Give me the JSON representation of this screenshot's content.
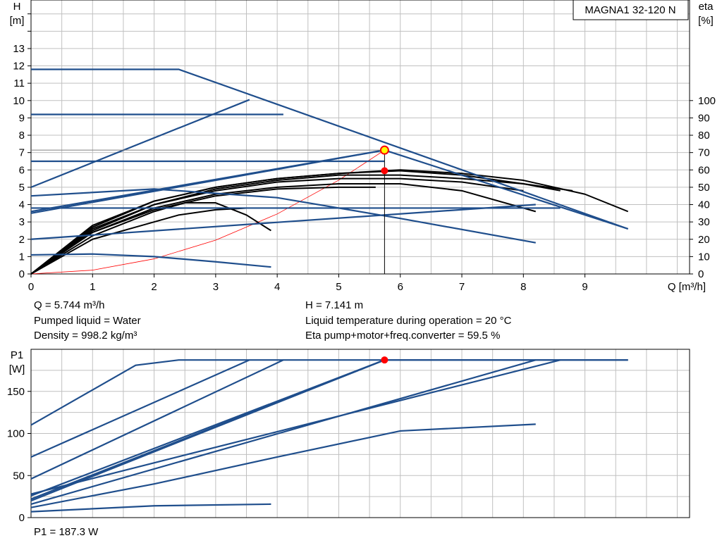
{
  "model_label": "MAGNA1 32-120 N",
  "colors": {
    "curve": "#1f4e8c",
    "bep": "#000000",
    "duty_point": "#ff0000",
    "system": "#ff0000",
    "marker_fill": "#ffff00",
    "grid": "#c0c0c0"
  },
  "info": {
    "flow": "Q = 5.744 m³/h",
    "head": "H = 7.141 m",
    "liquid": "Pumped liquid = Water",
    "temperature": "Liquid temperature during operation = 20 °C",
    "density": "Density = 998.2 kg/m³",
    "eta": "Eta pump+motor+freq.converter = 59.5 %",
    "power": "P1 = 187.3 W"
  },
  "chart_data": [
    {
      "type": "line",
      "title": "",
      "xlabel": "Q [m³/h]",
      "ylabel": "H\n[m]",
      "y2label": "eta\n[%]",
      "xlim": [
        0,
        10.7
      ],
      "ylim": [
        0,
        15.8
      ],
      "y2lim": [
        0,
        158
      ],
      "x_ticks": [
        0,
        1,
        2,
        3,
        4,
        5,
        6,
        7,
        8,
        9
      ],
      "y_ticks": [
        0,
        1,
        2,
        3,
        4,
        5,
        6,
        7,
        8,
        9,
        10,
        11,
        12,
        13
      ],
      "y2_ticks": [
        0,
        10,
        20,
        30,
        40,
        50,
        60,
        70,
        80,
        90,
        100
      ],
      "grid": true,
      "legend": "none",
      "head_curves": [
        {
          "x": [
            0,
            2.4,
            9.7
          ],
          "y": [
            11.8,
            11.8,
            2.6
          ]
        },
        {
          "x": [
            0,
            4.1
          ],
          "y": [
            9.2,
            9.2
          ]
        },
        {
          "x": [
            0,
            3.55
          ],
          "y": [
            5.0,
            10.05
          ]
        },
        {
          "x": [
            0,
            5.744
          ],
          "y": [
            6.5,
            6.5
          ]
        },
        {
          "x": [
            0,
            5.744,
            9.7
          ],
          "y": [
            3.6,
            7.141,
            2.6
          ]
        },
        {
          "x": [
            0,
            5.744
          ],
          "y": [
            3.5,
            7.141
          ]
        },
        {
          "x": [
            0,
            8.6
          ],
          "y": [
            3.8,
            3.8
          ]
        },
        {
          "x": [
            0,
            8.2
          ],
          "y": [
            2.0,
            4.0
          ]
        },
        {
          "x": [
            0,
            2.0,
            4.0,
            6.0,
            8.2
          ],
          "y": [
            4.5,
            4.9,
            4.4,
            3.2,
            1.8
          ]
        },
        {
          "x": [
            0,
            1.0,
            2.0,
            3.0,
            3.9
          ],
          "y": [
            1.1,
            1.15,
            1.0,
            0.7,
            0.4
          ]
        }
      ],
      "efficiency_curves": [
        {
          "x": [
            0,
            1,
            2,
            3,
            4,
            5,
            6,
            7,
            8,
            9,
            9.7
          ],
          "y": [
            0,
            28,
            42,
            50,
            55,
            58,
            60,
            58,
            54,
            46,
            36
          ]
        },
        {
          "x": [
            0,
            1,
            2,
            3,
            4,
            5,
            6,
            7,
            8,
            8.8
          ],
          "y": [
            0,
            27,
            42,
            50,
            55,
            58,
            59.5,
            57,
            52,
            48
          ]
        },
        {
          "x": [
            0,
            1,
            2,
            3,
            4,
            5,
            6,
            7,
            8,
            8.6
          ],
          "y": [
            0,
            26,
            40,
            49,
            54,
            57,
            57,
            55,
            52,
            48
          ]
        },
        {
          "x": [
            0,
            1,
            2,
            3,
            4,
            5,
            6,
            7,
            8.2
          ],
          "y": [
            0,
            24,
            38,
            46,
            50,
            52,
            52,
            48,
            36
          ]
        },
        {
          "x": [
            0,
            1,
            2,
            3,
            4,
            5,
            6,
            7,
            8
          ],
          "y": [
            0,
            25,
            40,
            48,
            53,
            55,
            55,
            53,
            48
          ]
        },
        {
          "x": [
            0,
            1,
            2,
            3,
            4,
            5,
            5.6
          ],
          "y": [
            0,
            24,
            37,
            45,
            49,
            50,
            50
          ]
        },
        {
          "x": [
            0,
            1,
            2,
            2.5,
            3,
            3.5,
            3.9
          ],
          "y": [
            0,
            22,
            36,
            41,
            41,
            34,
            25
          ]
        },
        {
          "x": [
            0,
            1,
            1.8,
            2.4,
            3.0,
            3.5
          ],
          "y": [
            0,
            20,
            28,
            34,
            37,
            38
          ]
        }
      ],
      "system_curve": {
        "x": [
          0,
          1,
          2,
          3,
          4,
          5,
          5.744
        ],
        "y": [
          0,
          0.22,
          0.87,
          1.95,
          3.46,
          5.41,
          7.141
        ]
      },
      "duty_point": {
        "x": 5.744,
        "y": 7.141
      },
      "eta_point": {
        "x": 5.744,
        "eta": 59.5
      }
    },
    {
      "type": "line",
      "title": "",
      "xlabel": "",
      "ylabel": "P1\n[W]",
      "xlim": [
        0,
        10.7
      ],
      "ylim": [
        0,
        200
      ],
      "y_ticks": [
        0,
        50,
        100,
        150
      ],
      "grid": true,
      "legend": "none",
      "power_curves": [
        {
          "x": [
            0,
            1.7,
            2.4,
            9.7
          ],
          "y": [
            110,
            181,
            187.3,
            187.3
          ]
        },
        {
          "x": [
            0,
            3.55
          ],
          "y": [
            72,
            187.3
          ]
        },
        {
          "x": [
            0,
            4.1
          ],
          "y": [
            46,
            187.3
          ]
        },
        {
          "x": [
            0,
            5.744
          ],
          "y": [
            26,
            187.3
          ]
        },
        {
          "x": [
            0,
            5.744,
            9.7
          ],
          "y": [
            22,
            187.3,
            187.3
          ]
        },
        {
          "x": [
            0,
            5.744
          ],
          "y": [
            20,
            187.3
          ]
        },
        {
          "x": [
            0,
            8.6
          ],
          "y": [
            28,
            187.3
          ]
        },
        {
          "x": [
            0,
            8.2
          ],
          "y": [
            16,
            187.3
          ]
        },
        {
          "x": [
            0,
            2.0,
            4.0,
            6.0,
            8.2
          ],
          "y": [
            12,
            40,
            72,
            103,
            111
          ]
        },
        {
          "x": [
            0,
            2.0,
            3.9
          ],
          "y": [
            7,
            14,
            16
          ]
        }
      ],
      "operating_point": {
        "x": 5.744,
        "y": 187.3
      }
    }
  ]
}
